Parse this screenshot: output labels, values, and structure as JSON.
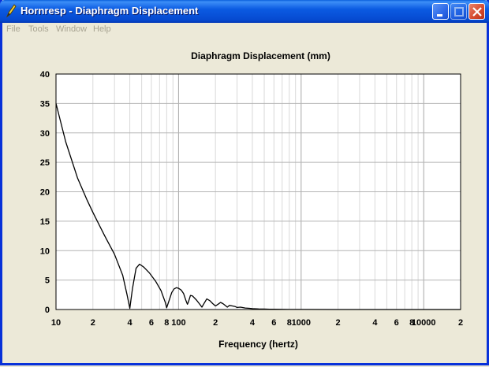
{
  "window": {
    "title": "Hornresp - Diaphragm Displacement",
    "icon": "pencil-icon",
    "controls": {
      "minimize": "minimize-icon",
      "maximize": "maximize-icon",
      "close": "close-icon"
    }
  },
  "menubar": {
    "items": [
      "File",
      "Tools",
      "Window",
      "Help"
    ]
  },
  "chart_data": {
    "type": "line",
    "title": "Diaphragm Displacement (mm)",
    "xlabel": "Frequency (hertz)",
    "ylabel": "",
    "xscale": "log",
    "xlim": [
      10,
      20000
    ],
    "ylim": [
      0,
      40
    ],
    "grid": true,
    "y_ticks": [
      0,
      5,
      10,
      15,
      20,
      25,
      30,
      35,
      40
    ],
    "x_tick_labels": [
      {
        "value": 10,
        "label": "10"
      },
      {
        "value": 20,
        "label": "2"
      },
      {
        "value": 40,
        "label": "4"
      },
      {
        "value": 60,
        "label": "6"
      },
      {
        "value": 80,
        "label": "8"
      },
      {
        "value": 100,
        "label": "100"
      },
      {
        "value": 200,
        "label": "2"
      },
      {
        "value": 400,
        "label": "4"
      },
      {
        "value": 600,
        "label": "6"
      },
      {
        "value": 800,
        "label": "8"
      },
      {
        "value": 1000,
        "label": "1000"
      },
      {
        "value": 2000,
        "label": "2"
      },
      {
        "value": 4000,
        "label": "4"
      },
      {
        "value": 6000,
        "label": "6"
      },
      {
        "value": 8000,
        "label": "8"
      },
      {
        "value": 10000,
        "label": "10000"
      },
      {
        "value": 20000,
        "label": "2"
      }
    ],
    "series": [
      {
        "x": [
          10,
          12,
          15,
          18,
          20,
          25,
          30,
          35,
          38,
          40,
          42,
          45,
          48,
          52,
          58,
          65,
          72,
          78,
          80,
          84,
          88,
          92,
          96,
          100,
          105,
          110,
          115,
          118,
          120,
          125,
          130,
          140,
          150,
          155,
          160,
          170,
          180,
          190,
          200,
          210,
          220,
          230,
          240,
          250,
          260,
          275,
          290,
          300,
          320,
          350,
          380,
          400,
          450,
          500,
          550,
          600,
          800,
          1000,
          2000,
          5000,
          10000,
          20000
        ],
        "y": [
          35,
          28.5,
          22.3,
          18.5,
          16.5,
          12.5,
          9.4,
          5.8,
          2.5,
          0.2,
          3.5,
          7,
          7.7,
          7.2,
          6.2,
          4.8,
          3.2,
          1.2,
          0.3,
          1.6,
          2.9,
          3.5,
          3.7,
          3.6,
          3.3,
          2.7,
          1.5,
          0.9,
          1.2,
          2.4,
          2.3,
          1.6,
          0.8,
          0.4,
          0.9,
          1.8,
          1.5,
          1.0,
          0.6,
          0.9,
          1.2,
          1.0,
          0.7,
          0.4,
          0.7,
          0.6,
          0.5,
          0.35,
          0.4,
          0.25,
          0.2,
          0.15,
          0.1,
          0.08,
          0.05,
          0.04,
          0.02,
          0.01,
          0,
          0,
          0,
          0
        ]
      }
    ]
  },
  "colors": {
    "plot_bg": "#ffffff",
    "line": "#000000",
    "grid": "#c8c8c8",
    "window_bg": "#ece9d8"
  }
}
